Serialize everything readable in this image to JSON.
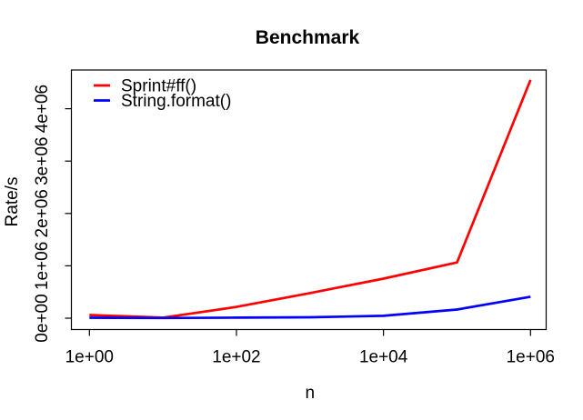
{
  "window": {
    "background": "#ffffff",
    "text_color": "#000000"
  },
  "chart_data": {
    "type": "line",
    "title": "Benchmark",
    "xlabel": "n",
    "ylabel": "Rate/s",
    "x_scale": "log10",
    "grid": false,
    "legend_position": "top-left",
    "axis_color": "#000000",
    "line_width": 2.7,
    "x": [
      1,
      10,
      100,
      1000,
      10000,
      100000,
      1000000
    ],
    "series": [
      {
        "name": "Sprint#ff()",
        "color": "#ff0000",
        "values": [
          60000,
          10000,
          215000,
          480000,
          755000,
          1065000,
          4550000
        ]
      },
      {
        "name": "String.format()",
        "color": "#0000ff",
        "values": [
          8000,
          4000,
          10000,
          18000,
          45000,
          165000,
          410000
        ]
      }
    ],
    "x_ticks": [
      1,
      100,
      10000,
      1000000
    ],
    "x_tick_labels": [
      "1e+00",
      "1e+02",
      "1e+04",
      "1e+06"
    ],
    "y_ticks": [
      0,
      1000000,
      2000000,
      3000000,
      4000000
    ],
    "y_tick_labels": [
      "0e+00",
      "1e+06",
      "2e+06",
      "3e+06",
      "4e+06"
    ],
    "xlim_log10": [
      0,
      6
    ],
    "ylim": [
      0,
      4550000
    ]
  }
}
